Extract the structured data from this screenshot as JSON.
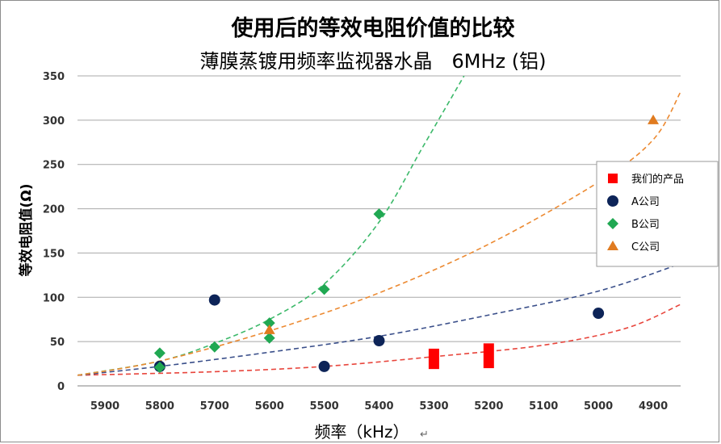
{
  "chart_data": {
    "type": "scatter",
    "title": "使用后的等效电阻价值的比较",
    "subtitle": "薄膜蒸镀用频率监视器水晶　6MHz (铝)",
    "xlabel": "频率（kHz）",
    "xlabel_suffix": "↵",
    "ylabel": "等效电阻值(Ω)",
    "x_reversed": true,
    "xlim": [
      4850,
      5950
    ],
    "ylim": [
      0,
      350
    ],
    "xticks": [
      5900,
      5800,
      5700,
      5600,
      5500,
      5400,
      5300,
      5200,
      5100,
      5000,
      4900
    ],
    "yticks": [
      0,
      50,
      100,
      150,
      200,
      250,
      300,
      350
    ],
    "grid": "horizontal",
    "legend_position": "right",
    "series": [
      {
        "name": "我们的产品",
        "marker": "square",
        "color": "#ff0000",
        "points": [
          {
            "x": 5300,
            "y_low": 19,
            "y_high": 42
          },
          {
            "x": 5200,
            "y_low": 20,
            "y_high": 48
          }
        ],
        "trend": [
          [
            5950,
            12
          ],
          [
            5700,
            16
          ],
          [
            5500,
            22
          ],
          [
            5300,
            33
          ],
          [
            5100,
            46
          ],
          [
            4950,
            65
          ],
          [
            4850,
            92
          ]
        ]
      },
      {
        "name": "A公司",
        "marker": "circle",
        "color": "#0d2458",
        "points": [
          {
            "x": 5800,
            "y": 22
          },
          {
            "x": 5700,
            "y": 97
          },
          {
            "x": 5500,
            "y": 22
          },
          {
            "x": 5400,
            "y": 51
          },
          {
            "x": 5000,
            "y": 82
          }
        ],
        "trend": [
          [
            5950,
            12
          ],
          [
            5800,
            22
          ],
          [
            5600,
            38
          ],
          [
            5400,
            56
          ],
          [
            5200,
            80
          ],
          [
            5000,
            107
          ],
          [
            4850,
            138
          ]
        ]
      },
      {
        "name": "B公司",
        "marker": "diamond",
        "color": "#20a852",
        "points": [
          {
            "x": 5800,
            "y": 37
          },
          {
            "x": 5800,
            "y": 21
          },
          {
            "x": 5700,
            "y": 44
          },
          {
            "x": 5600,
            "y": 71
          },
          {
            "x": 5600,
            "y": 54
          },
          {
            "x": 5500,
            "y": 109
          },
          {
            "x": 5400,
            "y": 194
          }
        ],
        "trend": [
          [
            5950,
            12
          ],
          [
            5800,
            28
          ],
          [
            5700,
            48
          ],
          [
            5600,
            75
          ],
          [
            5500,
            115
          ],
          [
            5400,
            185
          ],
          [
            5320,
            270
          ],
          [
            5245,
            350
          ]
        ]
      },
      {
        "name": "C公司",
        "marker": "triangle",
        "color": "#e07b20",
        "points": [
          {
            "x": 5600,
            "y": 63
          },
          {
            "x": 4900,
            "y": 300
          }
        ],
        "trend": [
          [
            5950,
            12
          ],
          [
            5800,
            28
          ],
          [
            5600,
            62
          ],
          [
            5400,
            105
          ],
          [
            5200,
            160
          ],
          [
            5000,
            230
          ],
          [
            4900,
            278
          ],
          [
            4850,
            332
          ]
        ]
      }
    ]
  }
}
